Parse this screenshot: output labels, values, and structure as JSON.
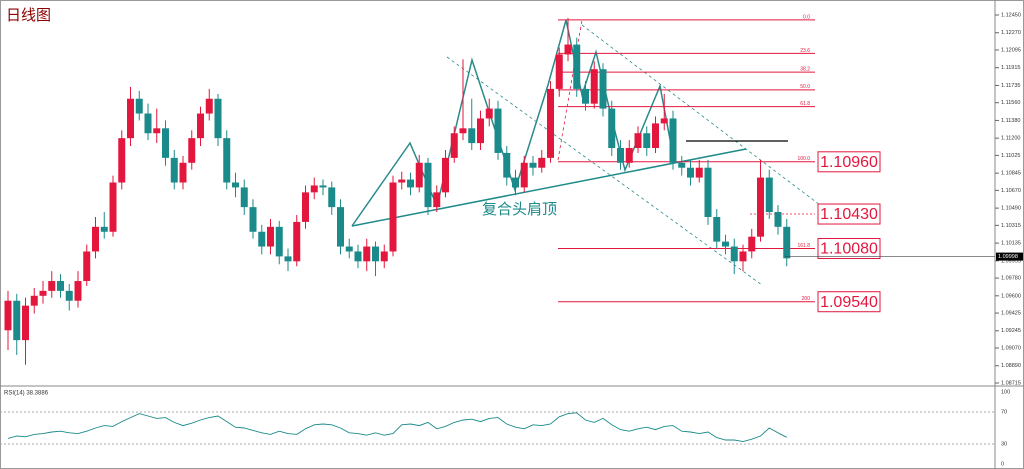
{
  "chart_data": {
    "type": "candlestick",
    "title": "日线图",
    "annotation": "复合头肩顶",
    "up_color": "#e3173e",
    "down_color": "#1a8a8a",
    "ylim": [
      1.08715,
      1.1245
    ],
    "yticks": [
      {
        "value": 1.1245,
        "label": "1.12450"
      },
      {
        "value": 1.1227,
        "label": "1.12270"
      },
      1.12095,
      1.11915,
      1.11735,
      {
        "value": 1.1156,
        "label": "1.11560"
      },
      {
        "value": 1.1138,
        "label": "1.11380"
      },
      {
        "value": 1.112,
        "label": "1.11200"
      },
      1.11025,
      1.10845,
      {
        "value": 1.1067,
        "label": "1.10670"
      },
      {
        "value": 1.1049,
        "label": "1.10490"
      },
      1.10315,
      1.10135,
      1.09955,
      {
        "value": 1.0978,
        "label": "1.09780"
      },
      {
        "value": 1.096,
        "label": "1.09600"
      },
      1.09425,
      1.09245,
      {
        "value": 1.0907,
        "label": "1.09070"
      },
      {
        "value": 1.0889,
        "label": "1.08890"
      },
      1.08715
    ],
    "open": [
      1.0925,
      1.0955,
      1.0915,
      1.095,
      1.096,
      1.0965,
      1.0975,
      1.0965,
      1.0955,
      1.0975,
      1.1005,
      1.103,
      1.1025,
      1.1075,
      1.112,
      1.116,
      1.1145,
      1.1125,
      1.113,
      1.11,
      1.1075,
      1.1095,
      1.112,
      1.1145,
      1.116,
      1.112,
      1.1075,
      1.107,
      1.105,
      1.1025,
      1.101,
      1.103,
      1.1,
      1.0995,
      1.1035,
      1.1065,
      1.1072,
      1.107,
      1.105,
      1.101,
      1.1005,
      1.0995,
      1.101,
      1.0995,
      1.1005,
      1.1075,
      1.1078,
      1.107,
      1.1095,
      1.105,
      1.1065,
      1.11,
      1.1125,
      1.113,
      1.1115,
      1.114,
      1.115,
      1.1105,
      1.108,
      1.107,
      1.1095,
      1.109,
      1.11,
      1.117,
      1.1205,
      1.1215,
      1.117,
      1.1155,
      1.119,
      1.115,
      1.111,
      1.1095,
      1.111,
      1.1125,
      1.111,
      1.1135,
      1.114,
      1.1095,
      1.109,
      1.108,
      1.109,
      1.104,
      1.1015,
      1.101,
      1.0995,
      1.1005,
      1.102,
      1.108,
      1.1045,
      1.103
    ],
    "close": [
      1.0955,
      1.0915,
      1.095,
      1.096,
      1.0965,
      1.0975,
      1.0965,
      1.0955,
      1.0975,
      1.1005,
      1.103,
      1.1025,
      1.1075,
      1.112,
      1.116,
      1.1145,
      1.1125,
      1.113,
      1.11,
      1.1075,
      1.1095,
      1.112,
      1.1145,
      1.116,
      1.112,
      1.1075,
      1.107,
      1.105,
      1.1025,
      1.101,
      1.103,
      1.1,
      1.0995,
      1.1035,
      1.1065,
      1.1072,
      1.107,
      1.105,
      1.101,
      1.1005,
      1.0995,
      1.101,
      1.0995,
      1.1005,
      1.1075,
      1.1078,
      1.107,
      1.1095,
      1.105,
      1.1065,
      1.11,
      1.1125,
      1.113,
      1.1115,
      1.114,
      1.115,
      1.1105,
      1.108,
      1.107,
      1.1095,
      1.109,
      1.11,
      1.117,
      1.1205,
      1.1215,
      1.117,
      1.1155,
      1.119,
      1.115,
      1.111,
      1.1095,
      1.111,
      1.1125,
      1.111,
      1.1135,
      1.114,
      1.1095,
      1.109,
      1.108,
      1.109,
      1.104,
      1.1015,
      1.101,
      1.0995,
      1.1005,
      1.102,
      1.108,
      1.1045,
      1.103,
      1.0998
    ],
    "high": [
      1.0965,
      1.0962,
      1.0958,
      1.0968,
      1.0975,
      1.0985,
      1.0982,
      1.0972,
      1.0985,
      1.1012,
      1.104,
      1.1045,
      1.1082,
      1.1128,
      1.1172,
      1.1168,
      1.1155,
      1.115,
      1.1138,
      1.1108,
      1.1102,
      1.1128,
      1.1152,
      1.117,
      1.1165,
      1.1128,
      1.1085,
      1.1078,
      1.1058,
      1.1032,
      1.1038,
      1.1036,
      1.1008,
      1.1042,
      1.1072,
      1.108,
      1.1078,
      1.1076,
      1.1058,
      1.1018,
      1.1012,
      1.1018,
      1.1015,
      1.1012,
      1.1082,
      1.1086,
      1.1085,
      1.1103,
      1.11,
      1.1072,
      1.1108,
      1.1132,
      1.12,
      1.116,
      1.1148,
      1.116,
      1.1158,
      1.1112,
      1.1088,
      1.1102,
      1.1102,
      1.1108,
      1.1178,
      1.1212,
      1.1242,
      1.1222,
      1.1178,
      1.1198,
      1.1196,
      1.1158,
      1.1118,
      1.1118,
      1.1132,
      1.1132,
      1.1142,
      1.1165,
      1.1148,
      1.1102,
      1.1098,
      1.1098,
      1.1098,
      1.1048,
      1.1022,
      1.1018,
      1.1012,
      1.1028,
      1.1098,
      1.1088,
      1.1052,
      1.1038
    ],
    "low": [
      1.0905,
      1.09,
      1.089,
      1.0942,
      1.0952,
      1.0958,
      1.0958,
      1.0945,
      1.0948,
      1.097,
      1.0998,
      1.1018,
      1.102,
      1.1068,
      1.1112,
      1.1138,
      1.1118,
      1.1115,
      1.1092,
      1.1068,
      1.1068,
      1.1088,
      1.1112,
      1.1138,
      1.1112,
      1.1068,
      1.106,
      1.1042,
      1.1018,
      1.1002,
      1.1002,
      1.0992,
      1.0985,
      1.099,
      1.1028,
      1.1058,
      1.1062,
      1.1042,
      1.1002,
      1.0998,
      1.0988,
      1.0985,
      1.098,
      1.0988,
      1.1,
      1.1068,
      1.1062,
      1.1065,
      1.1042,
      1.1045,
      1.106,
      1.1095,
      1.1118,
      1.1108,
      1.1108,
      1.1132,
      1.1098,
      1.1072,
      1.1062,
      1.1065,
      1.1082,
      1.1085,
      1.1095,
      1.1162,
      1.1198,
      1.1162,
      1.1148,
      1.115,
      1.1142,
      1.1102,
      1.1088,
      1.109,
      1.1105,
      1.1102,
      1.1105,
      1.1128,
      1.1088,
      1.1082,
      1.1072,
      1.1075,
      1.1032,
      1.1008,
      1.1002,
      1.0982,
      1.0985,
      1.0998,
      1.1015,
      1.1038,
      1.1022,
      1.099
    ],
    "fib_levels": [
      {
        "value": 1.124,
        "label": "0.0"
      },
      {
        "value": 1.1206,
        "label": "23.6"
      },
      {
        "value": 1.1187,
        "label": "38.2"
      },
      {
        "value": 1.1169,
        "label": "50.0"
      },
      {
        "value": 1.1152,
        "label": "61.8"
      },
      {
        "value": 1.1096,
        "label": "100.0"
      },
      {
        "value": 1.1008,
        "label": "161.8"
      },
      {
        "value": 1.0954,
        "label": "200"
      }
    ],
    "price_labels": [
      {
        "value": 1.1096,
        "label": "1.10960"
      },
      {
        "value": 1.1043,
        "label": "1.10430"
      },
      {
        "value": 1.1008,
        "label": "1.10080"
      },
      {
        "value": 1.0954,
        "label": "1.09540"
      }
    ],
    "current_price": {
      "value": 1.09998,
      "label": "1.09998"
    },
    "rsi": {
      "label": "RSI(14) 38.3886",
      "color": "#1a8a8a",
      "ylim": [
        0,
        100
      ],
      "yticks": [
        100,
        70,
        30,
        0
      ],
      "levels": [
        70,
        30
      ],
      "values": [
        37,
        40,
        39,
        42,
        43,
        45,
        46,
        44,
        43,
        46,
        50,
        53,
        52,
        58,
        63,
        68,
        65,
        62,
        63,
        57,
        53,
        56,
        60,
        63,
        65,
        58,
        51,
        50,
        47,
        44,
        42,
        46,
        43,
        42,
        49,
        54,
        55,
        54,
        50,
        44,
        43,
        41,
        44,
        41,
        43,
        54,
        55,
        53,
        57,
        49,
        52,
        57,
        60,
        61,
        58,
        62,
        63,
        55,
        51,
        49,
        54,
        53,
        55,
        64,
        68,
        69,
        60,
        57,
        62,
        54,
        48,
        46,
        49,
        51,
        48,
        52,
        53,
        46,
        45,
        43,
        45,
        38,
        35,
        35,
        33,
        36,
        40,
        50,
        44,
        38.3886
      ]
    }
  }
}
